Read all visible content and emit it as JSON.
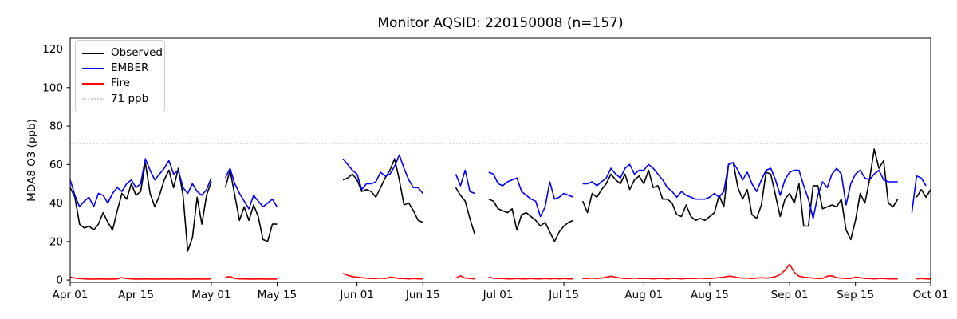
{
  "chart_data": {
    "type": "line",
    "title": "Monitor AQSID: 220150008 (n=157)",
    "n_observations": 157,
    "xlabel": "",
    "ylabel": "MDA8 O3 (ppb)",
    "x_frequency": "daily",
    "x_max_day": 183,
    "x_tick_days": [
      0,
      14,
      30,
      44,
      61,
      75,
      91,
      105,
      122,
      136,
      153,
      167,
      183
    ],
    "x_tick_labels": [
      "Apr 01",
      "Apr 15",
      "May 01",
      "May 15",
      "Jun 01",
      "Jun 15",
      "Jul 01",
      "Jul 15",
      "Aug 01",
      "Aug 15",
      "Sep 01",
      "Sep 15",
      "Oct 01"
    ],
    "y_ticks": [
      0,
      20,
      40,
      60,
      80,
      100,
      120
    ],
    "ylim": [
      -1.2,
      125.6
    ],
    "grid": false,
    "legend_position": "upper-left",
    "threshold": {
      "label": "71 ppb",
      "value": 71,
      "color": "#cfcfcf",
      "style": "dotted"
    },
    "series": [
      {
        "name": "Observed",
        "color": "#000000",
        "values": [
          48,
          43,
          29,
          27,
          28,
          26,
          29,
          35,
          30,
          26,
          36,
          45,
          42,
          50,
          44,
          46,
          61,
          45,
          38,
          44,
          52,
          57,
          48,
          58,
          44,
          15,
          22,
          43,
          29,
          44,
          51,
          null,
          null,
          48,
          57,
          44,
          31,
          38,
          31,
          39,
          33,
          21,
          20,
          29,
          29,
          null,
          null,
          null,
          null,
          null,
          null,
          null,
          null,
          null,
          null,
          null,
          null,
          null,
          52,
          53,
          55,
          52,
          46,
          47,
          46,
          43,
          48,
          53,
          57,
          63,
          52,
          39,
          40,
          36,
          31,
          30,
          null,
          null,
          null,
          null,
          null,
          null,
          48,
          44,
          41,
          32,
          24,
          null,
          null,
          42,
          41,
          37,
          36,
          35,
          37,
          26,
          34,
          35,
          33,
          31,
          28,
          30,
          25,
          20,
          25,
          28,
          30,
          31,
          null,
          41,
          35,
          45,
          43,
          47,
          50,
          55,
          52,
          50,
          55,
          47,
          52,
          54,
          50,
          57,
          48,
          49,
          42,
          42,
          40,
          34,
          33,
          39,
          33,
          31,
          32,
          31,
          33,
          35,
          44,
          38,
          60,
          61,
          48,
          42,
          47,
          34,
          32,
          39,
          56,
          55,
          44,
          33,
          42,
          45,
          40,
          50,
          28,
          28,
          49,
          49,
          37,
          38,
          39,
          38,
          42,
          26,
          21,
          31,
          45,
          40,
          52,
          68,
          58,
          62,
          40,
          38,
          42,
          null,
          null,
          null,
          43,
          47,
          43,
          47
        ]
      },
      {
        "name": "EMBER",
        "color": "#0000ff",
        "values": [
          52,
          44,
          38,
          41,
          43,
          38,
          45,
          44,
          40,
          45,
          48,
          46,
          50,
          52,
          48,
          50,
          63,
          57,
          52,
          55,
          58,
          62,
          55,
          57,
          48,
          45,
          50,
          46,
          44,
          47,
          53,
          null,
          null,
          53,
          58,
          50,
          45,
          41,
          37,
          44,
          41,
          38,
          40,
          42,
          38,
          null,
          null,
          null,
          null,
          null,
          null,
          null,
          null,
          null,
          null,
          null,
          null,
          null,
          63,
          60,
          57,
          55,
          47,
          50,
          50,
          51,
          56,
          54,
          55,
          59,
          65,
          58,
          52,
          48,
          48,
          45,
          null,
          null,
          null,
          null,
          null,
          null,
          55,
          49,
          57,
          46,
          45,
          null,
          null,
          56,
          55,
          50,
          49,
          51,
          52,
          53,
          46,
          44,
          42,
          41,
          33,
          38,
          51,
          42,
          43,
          45,
          44,
          43,
          null,
          50,
          50,
          51,
          49,
          51,
          53,
          58,
          55,
          53,
          58,
          60,
          55,
          57,
          57,
          60,
          58,
          55,
          52,
          48,
          46,
          43,
          46,
          44,
          43,
          42,
          42,
          42,
          43,
          45,
          43,
          46,
          60,
          61,
          57,
          52,
          56,
          50,
          46,
          52,
          57,
          58,
          52,
          44,
          52,
          56,
          57,
          57,
          49,
          42,
          32,
          44,
          51,
          48,
          55,
          58,
          55,
          39,
          50,
          55,
          57,
          53,
          52,
          55,
          57,
          52,
          51,
          51,
          51,
          null,
          null,
          35,
          54,
          53,
          49,
          null
        ]
      },
      {
        "name": "Fire",
        "color": "#ff0000",
        "values": [
          1.5,
          1.0,
          0.8,
          0.6,
          0.5,
          0.5,
          0.6,
          0.5,
          0.5,
          0.5,
          0.6,
          1.2,
          0.8,
          0.6,
          0.5,
          0.5,
          0.6,
          0.5,
          0.5,
          0.5,
          0.6,
          0.5,
          0.5,
          0.6,
          0.5,
          0.5,
          0.5,
          0.6,
          0.5,
          0.5,
          0.6,
          null,
          null,
          1.5,
          1.8,
          0.8,
          0.6,
          0.6,
          0.5,
          0.5,
          0.6,
          0.5,
          0.5,
          0.5,
          0.5,
          null,
          null,
          null,
          null,
          null,
          null,
          null,
          null,
          null,
          null,
          null,
          null,
          null,
          3.4,
          2.5,
          1.8,
          1.5,
          1.2,
          1.0,
          0.8,
          0.8,
          1.0,
          0.8,
          1.5,
          1.2,
          0.8,
          0.8,
          0.6,
          0.8,
          0.6,
          0.6,
          null,
          null,
          null,
          null,
          null,
          null,
          1.0,
          2.2,
          1.0,
          0.8,
          0.6,
          null,
          null,
          1.5,
          1.0,
          0.8,
          0.8,
          0.6,
          0.6,
          0.8,
          0.6,
          0.6,
          0.8,
          0.6,
          0.6,
          0.8,
          0.6,
          0.8,
          0.6,
          0.8,
          0.6,
          0.6,
          null,
          0.8,
          0.8,
          1.0,
          0.8,
          1.0,
          1.5,
          2.0,
          1.5,
          1.0,
          0.8,
          0.8,
          1.0,
          0.8,
          0.8,
          0.8,
          0.6,
          0.8,
          0.8,
          0.6,
          0.8,
          0.8,
          0.6,
          0.8,
          0.8,
          0.8,
          1.0,
          0.8,
          0.8,
          1.0,
          1.2,
          1.5,
          2.0,
          1.8,
          1.2,
          1.0,
          1.0,
          0.8,
          1.0,
          1.2,
          1.0,
          1.2,
          1.8,
          2.8,
          5.0,
          8.2,
          4.0,
          2.0,
          1.5,
          1.2,
          1.0,
          0.8,
          0.8,
          2.0,
          2.2,
          1.2,
          1.0,
          0.8,
          0.8,
          1.5,
          1.2,
          0.8,
          0.8,
          0.6,
          0.8,
          0.8,
          0.6,
          0.6,
          0.6,
          null,
          null,
          null,
          0.6,
          0.8,
          0.6,
          0.5
        ]
      }
    ]
  }
}
